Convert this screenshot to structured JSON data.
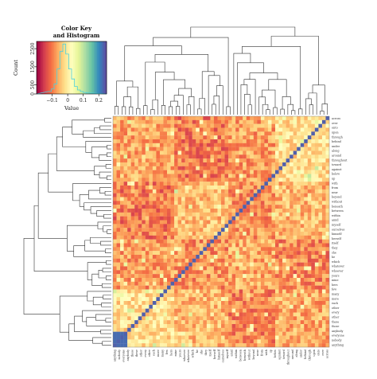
{
  "chart_data": {
    "type": "heatmap",
    "title": "",
    "color_key": {
      "title_line1": "Color Key",
      "title_line2": "and Histogram",
      "xlabel": "Value",
      "ylabel": "Count",
      "x_ticks": [
        "−0.1",
        "0",
        "0.1",
        "0.2"
      ],
      "y_ticks": [
        "0",
        "500",
        "1500",
        "2500"
      ],
      "value_range": [
        -0.2,
        0.25
      ]
    },
    "palette": [
      "#9e0142",
      "#d53e4f",
      "#f46d43",
      "#fdae61",
      "#fee08b",
      "#ffffbf",
      "#e6f598",
      "#abdda4",
      "#66c2a5",
      "#3288bd",
      "#5e4fa2"
    ],
    "row_labels": [
      "across",
      "over",
      "onto",
      "upon",
      "through",
      "behind",
      "under",
      "along",
      "around",
      "throughout",
      "toward",
      "against",
      "below",
      "up",
      "with",
      "from",
      "near",
      "beyond",
      "without",
      "beneath",
      "between",
      "within",
      "amid",
      "myself",
      "ourselves",
      "himself",
      "herself",
      "itself",
      "they",
      "she",
      "he",
      "which",
      "whatever",
      "whoever",
      "yours",
      "mine",
      "hers",
      "few",
      "many",
      "more",
      "each",
      "other",
      "every",
      "other",
      "these",
      "those",
      "anybody",
      "everyone",
      "nobody",
      "anything"
    ]
  }
}
